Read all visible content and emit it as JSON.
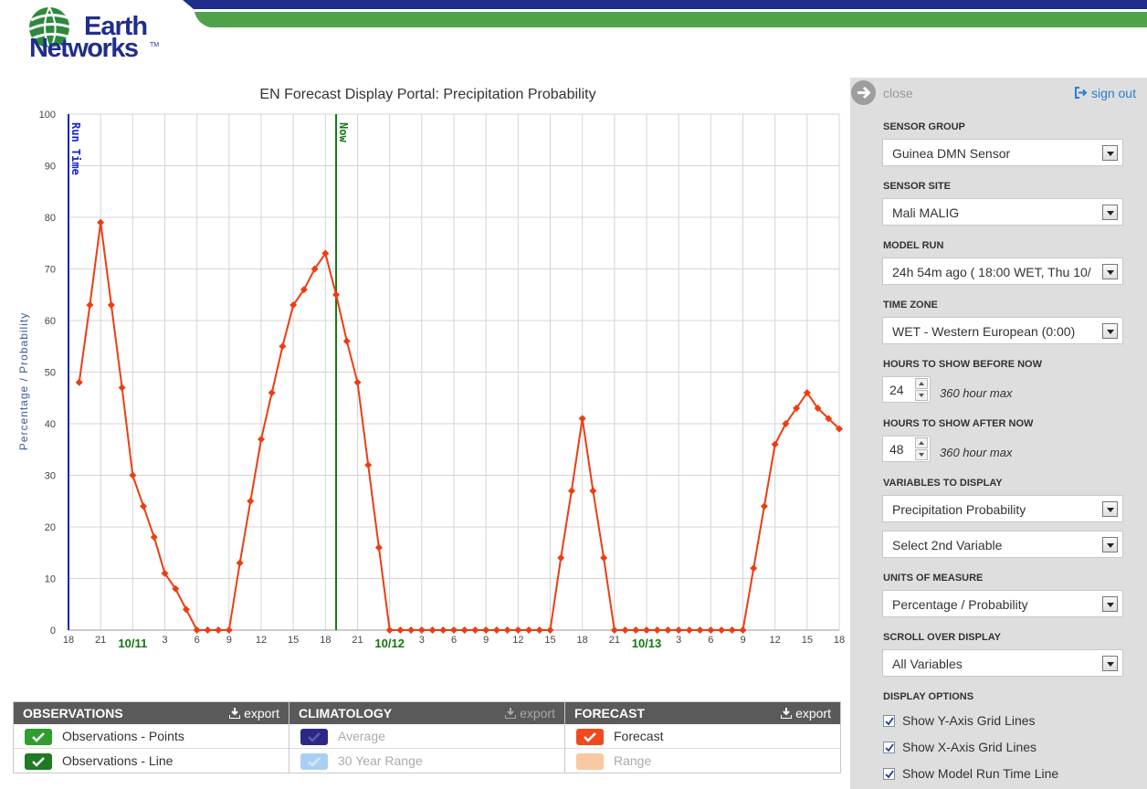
{
  "brand": {
    "line1": "Earth",
    "line2": "Networks",
    "tm": "TM"
  },
  "header": {
    "band_colors": [
      "#1f2e8a",
      "#4ea24a"
    ]
  },
  "chart": {
    "title": "EN Forecast Display Portal: Precipitation Probability",
    "y_label": "Percentage / Probability",
    "y_ticks": [
      "0",
      "10",
      "20",
      "30",
      "40",
      "50",
      "60",
      "70",
      "80",
      "90",
      "100"
    ],
    "x_ticks": [
      "18",
      "21",
      "3",
      "6",
      "9",
      "12",
      "15",
      "18",
      "21",
      "3",
      "6",
      "9",
      "12",
      "15",
      "18",
      "21",
      "3",
      "6",
      "9",
      "12",
      "15",
      "18"
    ],
    "date_labels": [
      "10/11",
      "10/12",
      "10/13"
    ],
    "run_time_label": "Run Time",
    "now_label": "Now",
    "colors": {
      "series": "#ee3c12",
      "run_time": "#1122cc",
      "now": "#117711",
      "date": "#117711",
      "grid": "#d4d4d4"
    }
  },
  "chart_data": {
    "type": "line",
    "title": "EN Forecast Display Portal: Precipitation Probability",
    "ylabel": "Percentage / Probability",
    "xlabel": "",
    "ylim": [
      0,
      100
    ],
    "x_unit": "hour offset from 10/10 18:00",
    "grid": {
      "x": true,
      "y": true
    },
    "markers": [
      {
        "name": "Run Time",
        "x": 0
      },
      {
        "name": "Now",
        "x": 25
      }
    ],
    "series": [
      {
        "name": "Forecast",
        "x": [
          1,
          2,
          3,
          4,
          5,
          6,
          7,
          8,
          9,
          10,
          11,
          12,
          13,
          14,
          15,
          16,
          17,
          18,
          19,
          20,
          21,
          22,
          23,
          24,
          25,
          26,
          27,
          28,
          29,
          30,
          31,
          32,
          33,
          34,
          35,
          36,
          37,
          38,
          39,
          40,
          41,
          42,
          43,
          44,
          45,
          46,
          47,
          48,
          49,
          50,
          51,
          52,
          53,
          54,
          55,
          56,
          57,
          58,
          59,
          60,
          61,
          62,
          63,
          64,
          65,
          66,
          67,
          68,
          69,
          70,
          71,
          72
        ],
        "values": [
          48,
          63,
          79,
          63,
          47,
          30,
          24,
          18,
          11,
          8,
          4,
          0,
          0,
          0,
          0,
          13,
          25,
          37,
          46,
          55,
          63,
          66,
          70,
          73,
          65,
          56,
          48,
          32,
          16,
          0,
          0,
          0,
          0,
          0,
          0,
          0,
          0,
          0,
          0,
          0,
          0,
          0,
          0,
          0,
          0,
          14,
          27,
          41,
          27,
          14,
          0,
          0,
          0,
          0,
          0,
          0,
          0,
          0,
          0,
          0,
          0,
          0,
          0,
          12,
          24,
          36,
          40,
          43,
          46,
          43,
          41,
          39
        ]
      }
    ]
  },
  "legend": {
    "export_label": "export",
    "observations": {
      "title": "OBSERVATIONS",
      "items": [
        "Observations - Points",
        "Observations - Line"
      ]
    },
    "climatology": {
      "title": "CLIMATOLOGY",
      "items": [
        "Average",
        "30 Year Range"
      ]
    },
    "forecast": {
      "title": "FORECAST",
      "items": [
        "Forecast",
        "Range"
      ]
    },
    "swatch_colors": {
      "obs_points": "#2f9e2f",
      "obs_line": "#1e7a23",
      "clim_avg": "#2a2a86",
      "clim_range": "#a8d0f4",
      "fc": "#ee4a1e",
      "fc_range": "#f8c9a0"
    }
  },
  "panel": {
    "close_label": "close",
    "signout_label": "sign out",
    "sensor_group": {
      "label": "SENSOR GROUP",
      "value": "Guinea DMN Sensor"
    },
    "sensor_site": {
      "label": "SENSOR SITE",
      "value": "Mali MALIG"
    },
    "model_run": {
      "label": "MODEL RUN",
      "value": "24h 54m ago ( 18:00 WET, Thu 10/"
    },
    "time_zone": {
      "label": "TIME ZONE",
      "value": "WET - Western European (0:00)"
    },
    "hours_before": {
      "label": "HOURS TO SHOW BEFORE NOW",
      "value": "24",
      "note": "360 hour max"
    },
    "hours_after": {
      "label": "HOURS TO SHOW AFTER NOW",
      "value": "48",
      "note": "360 hour max"
    },
    "variables": {
      "label": "VARIABLES TO DISPLAY",
      "first": "Precipitation Probability",
      "second": "Select 2nd Variable"
    },
    "units": {
      "label": "UNITS OF MEASURE",
      "value": "Percentage / Probability"
    },
    "scroll": {
      "label": "SCROLL OVER DISPLAY",
      "value": "All Variables"
    },
    "display_options": {
      "label": "DISPLAY OPTIONS",
      "items": [
        "Show Y-Axis Grid Lines",
        "Show X-Axis Grid Lines",
        "Show Model Run Time Line"
      ]
    }
  }
}
